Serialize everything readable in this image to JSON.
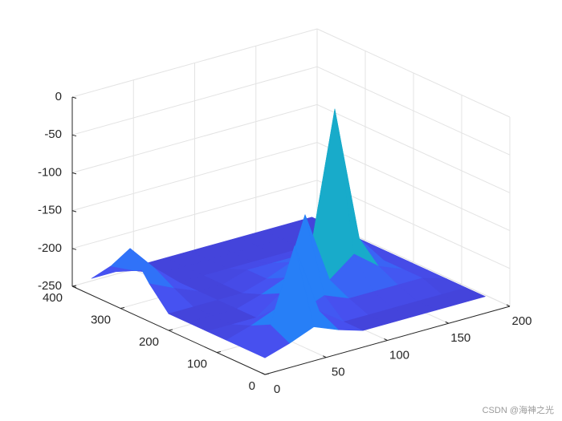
{
  "chart_data": {
    "type": "surface",
    "x": [
      0,
      20,
      40,
      60,
      80,
      100,
      120,
      140,
      160,
      180
    ],
    "y": [
      0,
      40,
      80,
      120,
      160,
      200,
      240,
      280,
      320,
      360
    ],
    "z": [
      [
        -228,
        -218,
        -205,
        -218,
        -228,
        -228,
        -228,
        -228,
        -228,
        -228
      ],
      [
        -228,
        -205,
        -110,
        -205,
        -228,
        -228,
        -228,
        -228,
        -228,
        -228
      ],
      [
        -228,
        -218,
        -205,
        -218,
        -205,
        -218,
        -218,
        -218,
        -218,
        -228
      ],
      [
        -228,
        -228,
        -228,
        -205,
        -110,
        -205,
        -180,
        -205,
        -218,
        -228
      ],
      [
        -228,
        -228,
        -228,
        -218,
        -205,
        -180,
        0,
        -180,
        -218,
        -228
      ],
      [
        -228,
        -228,
        -228,
        -228,
        -218,
        -205,
        -180,
        -205,
        -218,
        -228
      ],
      [
        -200,
        -215,
        -228,
        -228,
        -218,
        -218,
        -218,
        -218,
        -218,
        -228
      ],
      [
        -165,
        -200,
        -228,
        -228,
        -228,
        -228,
        -228,
        -228,
        -228,
        -228
      ],
      [
        -200,
        -215,
        -228,
        -228,
        -228,
        -228,
        -228,
        -228,
        -228,
        -228
      ],
      [
        -228,
        -228,
        -228,
        -228,
        -228,
        -228,
        -228,
        -228,
        -228,
        -228
      ]
    ],
    "xlim": [
      0,
      200
    ],
    "ylim": [
      0,
      400
    ],
    "zlim": [
      -250,
      0
    ],
    "xticks": [
      0,
      50,
      100,
      150,
      200
    ],
    "yticks": [
      0,
      100,
      200,
      300,
      400
    ],
    "zticks": [
      -250,
      -200,
      -150,
      -100,
      -50,
      0
    ],
    "grid": true,
    "colormap": [
      "#3e26a8",
      "#4751f1",
      "#297cfa",
      "#199fde",
      "#17b7b5",
      "#53c778",
      "#aac53e",
      "#fdbb3a",
      "#f9fb14"
    ]
  },
  "watermark": "CSDN @海神之光"
}
